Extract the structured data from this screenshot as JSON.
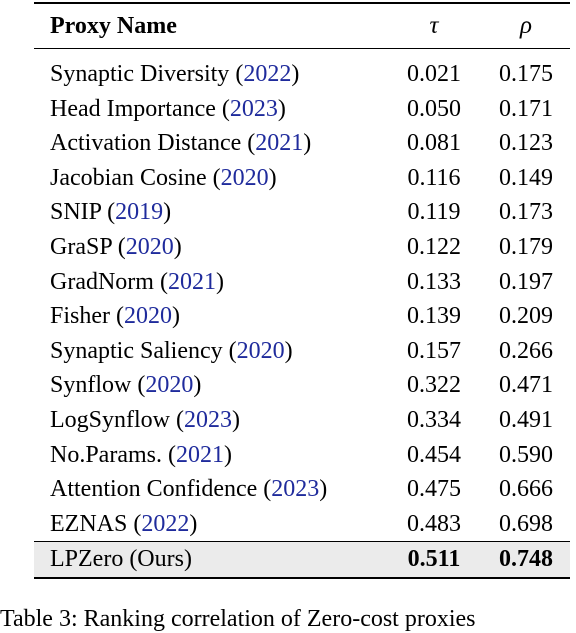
{
  "table": {
    "headers": {
      "name": "Proxy Name",
      "tau": "τ",
      "rho": "ρ"
    },
    "rows": [
      {
        "name": "Synaptic Diversity",
        "year": "2022",
        "tau": "0.021",
        "rho": "0.175"
      },
      {
        "name": "Head Importance",
        "year": "2023",
        "tau": "0.050",
        "rho": "0.171"
      },
      {
        "name": "Activation Distance",
        "year": "2021",
        "tau": "0.081",
        "rho": "0.123"
      },
      {
        "name": "Jacobian Cosine",
        "year": "2020",
        "tau": "0.116",
        "rho": "0.149"
      },
      {
        "name": "SNIP",
        "year": "2019",
        "tau": "0.119",
        "rho": "0.173"
      },
      {
        "name": "GraSP",
        "year": "2020",
        "tau": "0.122",
        "rho": "0.179"
      },
      {
        "name": "GradNorm",
        "year": "2021",
        "tau": "0.133",
        "rho": "0.197"
      },
      {
        "name": "Fisher",
        "year": "2020",
        "tau": "0.139",
        "rho": "0.209"
      },
      {
        "name": "Synaptic Saliency",
        "year": "2020",
        "tau": "0.157",
        "rho": "0.266"
      },
      {
        "name": "Synflow",
        "year": "2020",
        "tau": "0.322",
        "rho": "0.471"
      },
      {
        "name": "LogSynflow",
        "year": "2023",
        "tau": "0.334",
        "rho": "0.491"
      },
      {
        "name": "No.Params.",
        "year": "2021",
        "tau": "0.454",
        "rho": "0.590"
      },
      {
        "name": "Attention Confidence",
        "year": "2023",
        "tau": "0.475",
        "rho": "0.666"
      },
      {
        "name": "EZNAS",
        "year": "2022",
        "tau": "0.483",
        "rho": "0.698"
      }
    ],
    "ours": {
      "name": "LPZero (Ours)",
      "tau": "0.511",
      "rho": "0.748"
    }
  },
  "caption": "Table 3: Ranking correlation of Zero-cost proxies"
}
